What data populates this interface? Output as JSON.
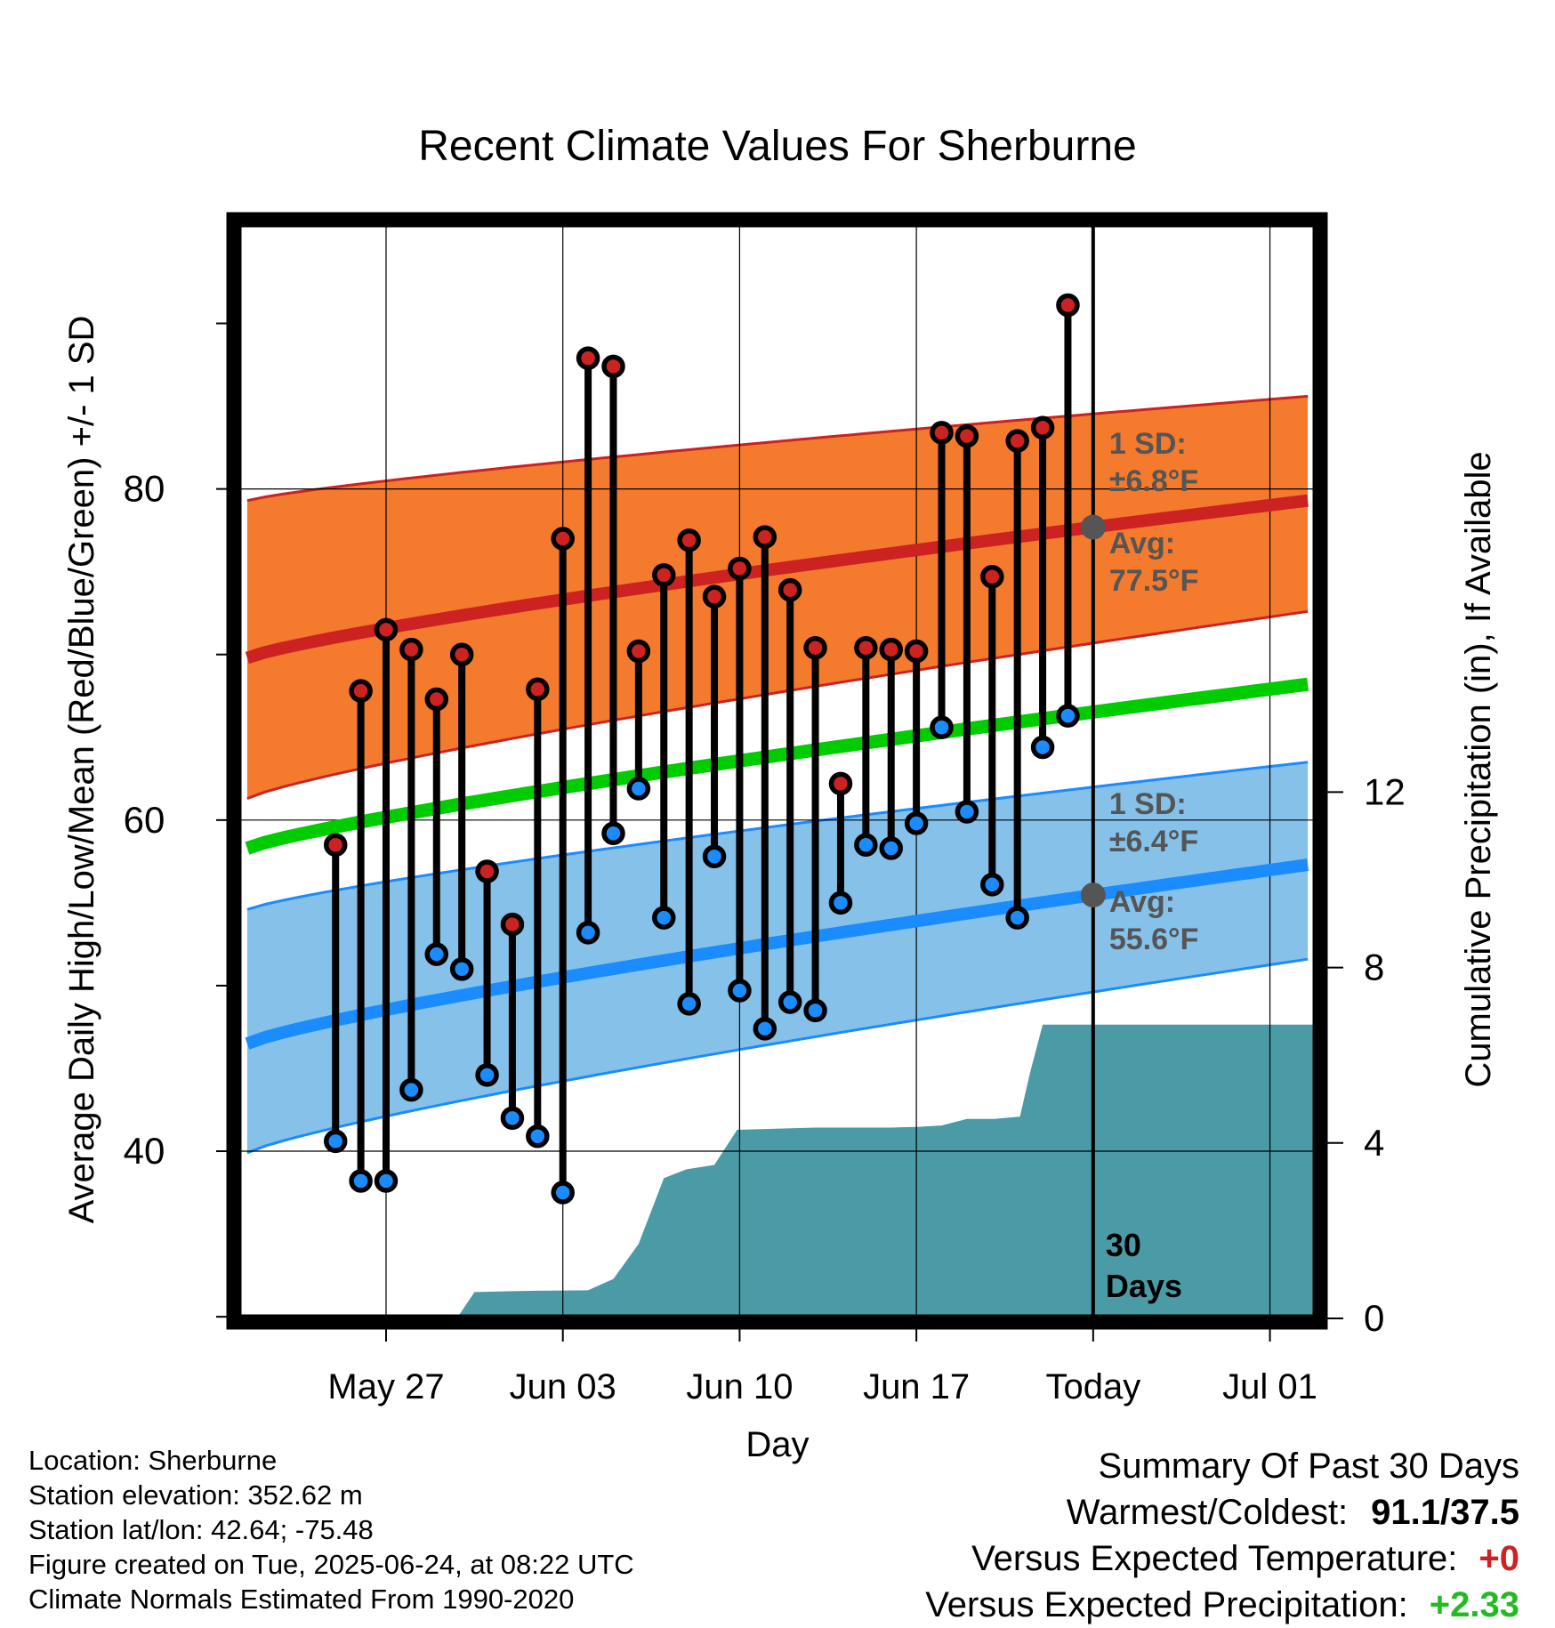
{
  "chart_data": {
    "type": "line",
    "title": "Recent Climate Values For Sherburne",
    "xlabel": "Day",
    "ylabel": "Average Daily High/Low/Mean (Red/Blue/Green) +/- 1 SD",
    "y2label": "Cumulative Precipitation (in), If Available",
    "ylim": [
      29.9,
      96.1
    ],
    "y2lim": [
      0,
      25
    ],
    "xlim": [
      -3.2,
      40.2
    ],
    "x_tick_labels": [
      {
        "x": 3,
        "label": "May 27"
      },
      {
        "x": 10,
        "label": "Jun 03"
      },
      {
        "x": 17,
        "label": "Jun 10"
      },
      {
        "x": 24,
        "label": "Jun 17"
      },
      {
        "x": 31,
        "label": "Today"
      },
      {
        "x": 38,
        "label": "Jul 01"
      }
    ],
    "y_ticks": [
      40,
      60,
      80
    ],
    "y2_ticks": [
      0,
      4,
      8,
      12
    ],
    "grid": true,
    "days": [
      1,
      2,
      3,
      4,
      5,
      6,
      7,
      8,
      9,
      10,
      11,
      12,
      13,
      14,
      15,
      16,
      17,
      18,
      19,
      20,
      21,
      22,
      23,
      24,
      25,
      26,
      27,
      28,
      29,
      30
    ],
    "daily_high": [
      58.5,
      67.8,
      71.5,
      70.3,
      67.3,
      70.0,
      56.9,
      53.7,
      67.9,
      77.0,
      87.9,
      87.4,
      70.2,
      74.8,
      76.9,
      73.5,
      75.2,
      77.1,
      73.9,
      70.4,
      62.2,
      70.4,
      70.3,
      70.2,
      83.4,
      83.2,
      74.7,
      82.9,
      83.7,
      91.1
    ],
    "daily_low": [
      40.6,
      38.2,
      38.2,
      43.7,
      51.9,
      51.0,
      44.6,
      42.0,
      40.9,
      37.5,
      53.2,
      59.2,
      61.9,
      54.1,
      48.9,
      57.8,
      49.7,
      47.4,
      49.0,
      48.5,
      55.0,
      58.5,
      58.3,
      59.8,
      65.6,
      60.5,
      56.1,
      54.1,
      64.4,
      66.3
    ],
    "normal_high": {
      "x": [
        -2.5,
        39.5
      ],
      "values": [
        69.8,
        79.3
      ]
    },
    "normal_high_band": {
      "upper": [
        79.3,
        85.6
      ],
      "lower": [
        61.3,
        72.6
      ]
    },
    "normal_low": {
      "x": [
        -2.5,
        39.5
      ],
      "values": [
        46.5,
        57.3
      ]
    },
    "normal_low_band": {
      "upper": [
        54.6,
        63.5
      ],
      "lower": [
        39.9,
        51.6
      ]
    },
    "normal_mean": {
      "x": [
        -2.5,
        39.5
      ],
      "values": [
        58.3,
        68.2
      ]
    },
    "cumulative_precip": {
      "x": [
        5.8,
        6.5,
        8.0,
        9.0,
        11.0,
        12.0,
        13.0,
        14.0,
        14.9,
        16.0,
        16.9,
        20.0,
        23.0,
        24.1,
        25.0,
        26.0,
        27.1,
        28.1,
        28.5,
        29.0,
        40.2
      ],
      "values": [
        0,
        0.6,
        0.62,
        0.63,
        0.64,
        0.9,
        1.7,
        3.2,
        3.4,
        3.5,
        4.3,
        4.35,
        4.35,
        4.37,
        4.4,
        4.55,
        4.55,
        4.6,
        5.6,
        6.7,
        6.7
      ]
    },
    "annotations": {
      "high_sd_label": "1 SD:",
      "high_sd_value": "±6.8°F",
      "high_avg_label": "Avg:",
      "high_avg_value": "77.5°F",
      "low_sd_label": "1 SD:",
      "low_sd_value": "±6.4°F",
      "low_avg_label": "Avg:",
      "low_avg_value": "55.6°F",
      "period_line1": "30",
      "period_line2": "Days"
    },
    "colors": {
      "high": "#cc2222",
      "high_band": "#f47a2e",
      "low": "#1a8cff",
      "low_band": "#85c1e9",
      "mean": "#00cc00",
      "precip": "#4a9ba6",
      "annotation": "#555555"
    }
  },
  "footer": {
    "location": "Location: Sherburne",
    "elevation": "Station elevation: 352.62 m",
    "latlon": "Station lat/lon: 42.64; -75.48",
    "created": "Figure created on Tue, 2025-06-24, at 08:22 UTC",
    "normals": "Climate Normals Estimated From 1990-2020"
  },
  "summary": {
    "title": "Summary Of Past 30 Days",
    "warm_cold_label": "Warmest/Coldest:",
    "warm_cold_value": "91.1/37.5",
    "temp_label": "Versus Expected Temperature:",
    "temp_value": "+0",
    "precip_label": "Versus Expected Precipitation:",
    "precip_value": "+2.33"
  }
}
